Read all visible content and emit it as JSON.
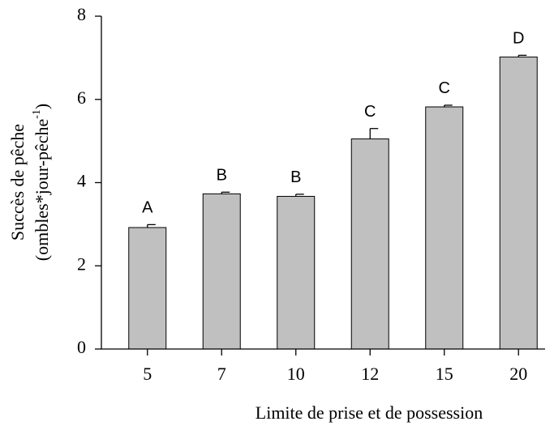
{
  "chart_data": {
    "type": "bar",
    "x_label": "Limite de prise et de possession",
    "y_label": {
      "line1": "Succès de pêche",
      "line2": "(ombles*jour-pêche",
      "superscript": "-1",
      "line2_end": ")"
    },
    "categories": [
      "5",
      "7",
      "10",
      "12",
      "15",
      "20"
    ],
    "values": [
      2.92,
      3.73,
      3.67,
      5.05,
      5.82,
      7.02
    ],
    "errors": [
      0.07,
      0.04,
      0.05,
      0.25,
      0.04,
      0.04
    ],
    "annotations": [
      "A",
      "B",
      "B",
      "C",
      "C",
      "D"
    ],
    "color": "#c0c0c0",
    "ylim": [
      0,
      8
    ],
    "yticks": [
      0,
      2,
      4,
      6,
      8
    ],
    "grid": false
  }
}
